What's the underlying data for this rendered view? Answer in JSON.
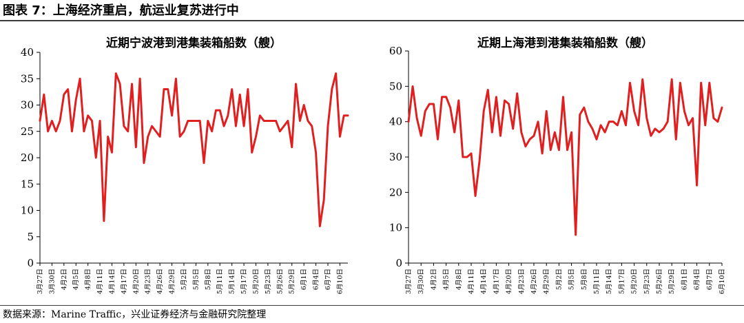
{
  "figure": {
    "title": "图表 7：上海经济重启，航运业复苏进行中",
    "source": "数据来源：Marine Traffic，兴业证券经济与金融研究院整理"
  },
  "colors": {
    "line": "#e02020",
    "axis": "#000000"
  },
  "chart_data": [
    {
      "type": "line",
      "title": "近期宁波港到港集装箱船数（艘）",
      "ylim": [
        0,
        40
      ],
      "yticks": [
        0,
        5,
        10,
        15,
        20,
        25,
        30,
        35,
        40
      ],
      "xtick_labels": [
        "3月27日",
        "3月30日",
        "4月2日",
        "4月5日",
        "4月8日",
        "4月11日",
        "4月14日",
        "4月17日",
        "4月20日",
        "4月23日",
        "4月26日",
        "4月29日",
        "5月2日",
        "5月5日",
        "5月8日",
        "5月11日",
        "5月14日",
        "5月17日",
        "5月20日",
        "5月23日",
        "5月26日",
        "5月29日",
        "6月1日",
        "6月4日",
        "6月7日",
        "6月10日"
      ],
      "start_date": "2022-03-27",
      "series": [
        {
          "values": [
            27,
            32,
            25,
            27,
            25,
            27,
            32,
            33,
            25,
            31,
            35,
            25,
            28,
            27,
            20,
            27,
            8,
            24,
            21,
            36,
            34,
            26,
            25,
            34,
            22,
            35,
            19,
            24,
            26,
            25,
            24,
            33,
            33,
            28,
            35,
            24,
            25,
            27,
            27,
            27,
            27,
            19,
            27,
            25,
            29,
            29,
            26,
            28,
            33,
            26,
            32,
            26,
            33,
            21,
            24,
            28,
            27,
            27,
            27,
            27,
            25,
            26,
            27,
            22,
            34,
            27,
            30,
            27,
            26,
            21,
            7,
            12,
            26,
            33,
            36,
            24,
            28,
            28
          ]
        }
      ]
    },
    {
      "type": "line",
      "title": "近期上海港到港集装箱船数（艘）",
      "ylim": [
        0,
        60
      ],
      "yticks": [
        0,
        10,
        20,
        30,
        40,
        50,
        60
      ],
      "xtick_labels": [
        "3月27日",
        "3月30日",
        "4月2日",
        "4月5日",
        "4月8日",
        "4月11日",
        "4月14日",
        "4月17日",
        "4月20日",
        "4月23日",
        "4月26日",
        "4月29日",
        "5月2日",
        "5月5日",
        "5月8日",
        "5月11日",
        "5月14日",
        "5月17日",
        "5月20日",
        "5月23日",
        "5月26日",
        "5月29日",
        "6月1日",
        "6月4日",
        "6月7日",
        "6月10日"
      ],
      "start_date": "2022-03-27",
      "series": [
        {
          "values": [
            40,
            50,
            41,
            36,
            43,
            45,
            45,
            35,
            47,
            47,
            44,
            37,
            46,
            30,
            30,
            31,
            19,
            29,
            43,
            49,
            37,
            47,
            36,
            46,
            45,
            38,
            48,
            37,
            33,
            35,
            36,
            40,
            31,
            43,
            32,
            37,
            32,
            47,
            32,
            37,
            8,
            42,
            44,
            40,
            38,
            35,
            39,
            37,
            40,
            40,
            39,
            43,
            39,
            51,
            43,
            39,
            52,
            41,
            36,
            38,
            37,
            38,
            40,
            52,
            35,
            51,
            43,
            39,
            41,
            22,
            51,
            39,
            51,
            41,
            40,
            44
          ]
        }
      ]
    }
  ]
}
